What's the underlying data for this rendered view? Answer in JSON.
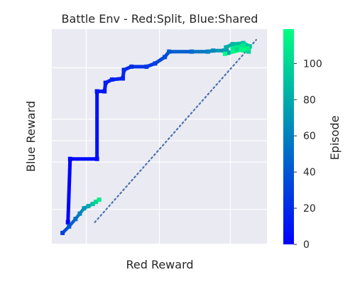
{
  "chart_data": {
    "type": "scatter",
    "title": "Battle Env - Red:Split, Blue:Shared",
    "xlabel": "Red Reward",
    "ylabel": "Blue Reward",
    "grid": true,
    "x_ticks_labeled": false,
    "y_ticks_labeled": false,
    "xlim": [
      0,
      100
    ],
    "ylim": [
      0,
      100
    ],
    "diagonal_reference_line": {
      "style": "dotted",
      "color": "#4c72b0",
      "from": [
        20,
        10
      ],
      "to": [
        95,
        95
      ]
    },
    "series": [
      {
        "marker": "thick path colored by episode",
        "points": [
          {
            "x": 7.5,
            "y": 10.0,
            "episode": 0
          },
          {
            "x": 8.5,
            "y": 39.5,
            "episode": 2
          },
          {
            "x": 21.0,
            "y": 39.5,
            "episode": 6
          },
          {
            "x": 21.0,
            "y": 71.0,
            "episode": 9
          },
          {
            "x": 24.5,
            "y": 71.0,
            "episode": 11
          },
          {
            "x": 25.0,
            "y": 75.0,
            "episode": 13
          },
          {
            "x": 28.0,
            "y": 76.5,
            "episode": 15
          },
          {
            "x": 33.0,
            "y": 77.0,
            "episode": 17
          },
          {
            "x": 33.5,
            "y": 81.0,
            "episode": 19
          },
          {
            "x": 37.0,
            "y": 82.5,
            "episode": 22
          },
          {
            "x": 44.0,
            "y": 82.5,
            "episode": 26
          },
          {
            "x": 48.0,
            "y": 84.0,
            "episode": 30
          },
          {
            "x": 52.5,
            "y": 87.0,
            "episode": 35
          },
          {
            "x": 54.5,
            "y": 89.5,
            "episode": 40
          },
          {
            "x": 65.0,
            "y": 89.5,
            "episode": 50
          },
          {
            "x": 72.5,
            "y": 89.5,
            "episode": 60
          },
          {
            "x": 75.0,
            "y": 90.0,
            "episode": 65
          },
          {
            "x": 80.0,
            "y": 90.0,
            "episode": 72
          },
          {
            "x": 82.0,
            "y": 89.0,
            "episode": 76
          },
          {
            "x": 81.0,
            "y": 91.5,
            "episode": 80
          },
          {
            "x": 84.0,
            "y": 93.0,
            "episode": 85
          },
          {
            "x": 89.0,
            "y": 93.5,
            "episode": 90
          },
          {
            "x": 92.0,
            "y": 92.0,
            "episode": 94
          },
          {
            "x": 91.5,
            "y": 89.5,
            "episode": 98
          },
          {
            "x": 86.0,
            "y": 90.5,
            "episode": 102
          },
          {
            "x": 89.0,
            "y": 92.5,
            "episode": 106
          },
          {
            "x": 84.0,
            "y": 91.0,
            "episode": 110
          },
          {
            "x": 91.0,
            "y": 91.0,
            "episode": 114
          },
          {
            "x": 80.5,
            "y": 88.5,
            "episode": 118
          }
        ]
      },
      {
        "marker": "lower trail colored by episode",
        "points": [
          {
            "x": 5.0,
            "y": 5.0,
            "episode": 30
          },
          {
            "x": 8.0,
            "y": 8.0,
            "episode": 40
          },
          {
            "x": 11.0,
            "y": 11.5,
            "episode": 50
          },
          {
            "x": 13.0,
            "y": 14.0,
            "episode": 60
          },
          {
            "x": 15.0,
            "y": 16.5,
            "episode": 70
          },
          {
            "x": 17.0,
            "y": 17.5,
            "episode": 80
          },
          {
            "x": 19.0,
            "y": 18.5,
            "episode": 90
          },
          {
            "x": 20.5,
            "y": 19.5,
            "episode": 100
          },
          {
            "x": 22.0,
            "y": 20.5,
            "episode": 110
          }
        ]
      }
    ],
    "colorbar": {
      "label": "Episode",
      "range": [
        0,
        119
      ],
      "ticks": [
        0,
        20,
        40,
        60,
        80,
        100
      ],
      "colormap": "winter",
      "color_low": "#0000ff",
      "color_high": "#00ff80"
    }
  }
}
